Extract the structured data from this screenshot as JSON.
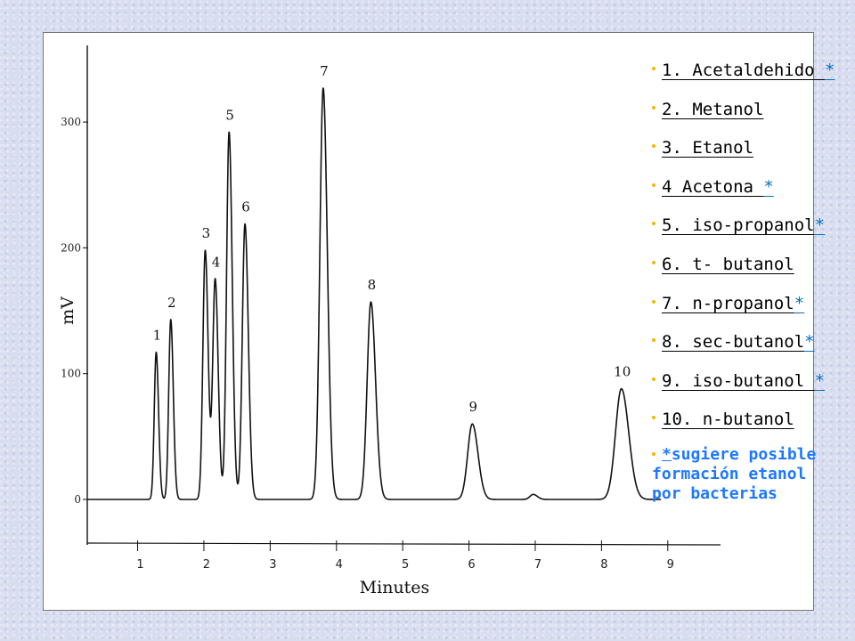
{
  "chart_data": {
    "type": "line",
    "xlabel": "Minutes",
    "ylabel": "mV",
    "xlim": [
      0.2,
      9.5
    ],
    "ylim": [
      -30,
      360
    ],
    "x_ticks": [
      "1",
      "2",
      "3",
      "4",
      "5",
      "6",
      "7",
      "8",
      "9"
    ],
    "y_ticks": [
      {
        "value": 0,
        "label": "0"
      },
      {
        "value": 100,
        "label": "100"
      },
      {
        "value": 200,
        "label": "200"
      },
      {
        "value": 300,
        "label": "300"
      }
    ],
    "baseline": 0,
    "peaks": [
      {
        "label": "1",
        "rt": 1.28,
        "height": 117
      },
      {
        "label": "2",
        "rt": 1.5,
        "height": 143
      },
      {
        "label": "3",
        "rt": 2.02,
        "height": 198
      },
      {
        "label": "4",
        "rt": 2.17,
        "height": 175
      },
      {
        "label": "5",
        "rt": 2.38,
        "height": 292
      },
      {
        "label": "6",
        "rt": 2.62,
        "height": 219
      },
      {
        "label": "7",
        "rt": 3.8,
        "height": 327
      },
      {
        "label": "8",
        "rt": 4.52,
        "height": 157
      },
      {
        "label": "9",
        "rt": 6.05,
        "height": 60
      },
      {
        "label": "10",
        "rt": 8.3,
        "height": 88
      }
    ],
    "minor_peaks": [
      {
        "rt": 6.97,
        "height": 4
      }
    ]
  },
  "legend": {
    "items": [
      {
        "text": "1. Acetaldehido ",
        "asterisk": "*"
      },
      {
        "text": "2. Metanol",
        "asterisk": ""
      },
      {
        "text": "3. Etanol",
        "asterisk": ""
      },
      {
        "text": "4 Acetona ",
        "asterisk": "*"
      },
      {
        "text": "5. iso-propanol",
        "asterisk": "*"
      },
      {
        "text": "6. t- butanol",
        "asterisk": ""
      },
      {
        "text": "7. n-propanol",
        "asterisk": "*"
      },
      {
        "text": "8. sec-butanol",
        "asterisk": "*"
      },
      {
        "text": "9. iso-butanol ",
        "asterisk": "*"
      },
      {
        "text": "10. n-butanol",
        "asterisk": ""
      }
    ],
    "note_asterisk": "*",
    "note_line1": "sugiere posible",
    "note_line2": "formación etanol",
    "note_line3": "por bacterias"
  },
  "colors": {
    "trace": "#111111",
    "bullet": "#f2b600",
    "asterisk": "#0070c0",
    "note": "#1e78ff",
    "background": "#d9ddf0"
  }
}
